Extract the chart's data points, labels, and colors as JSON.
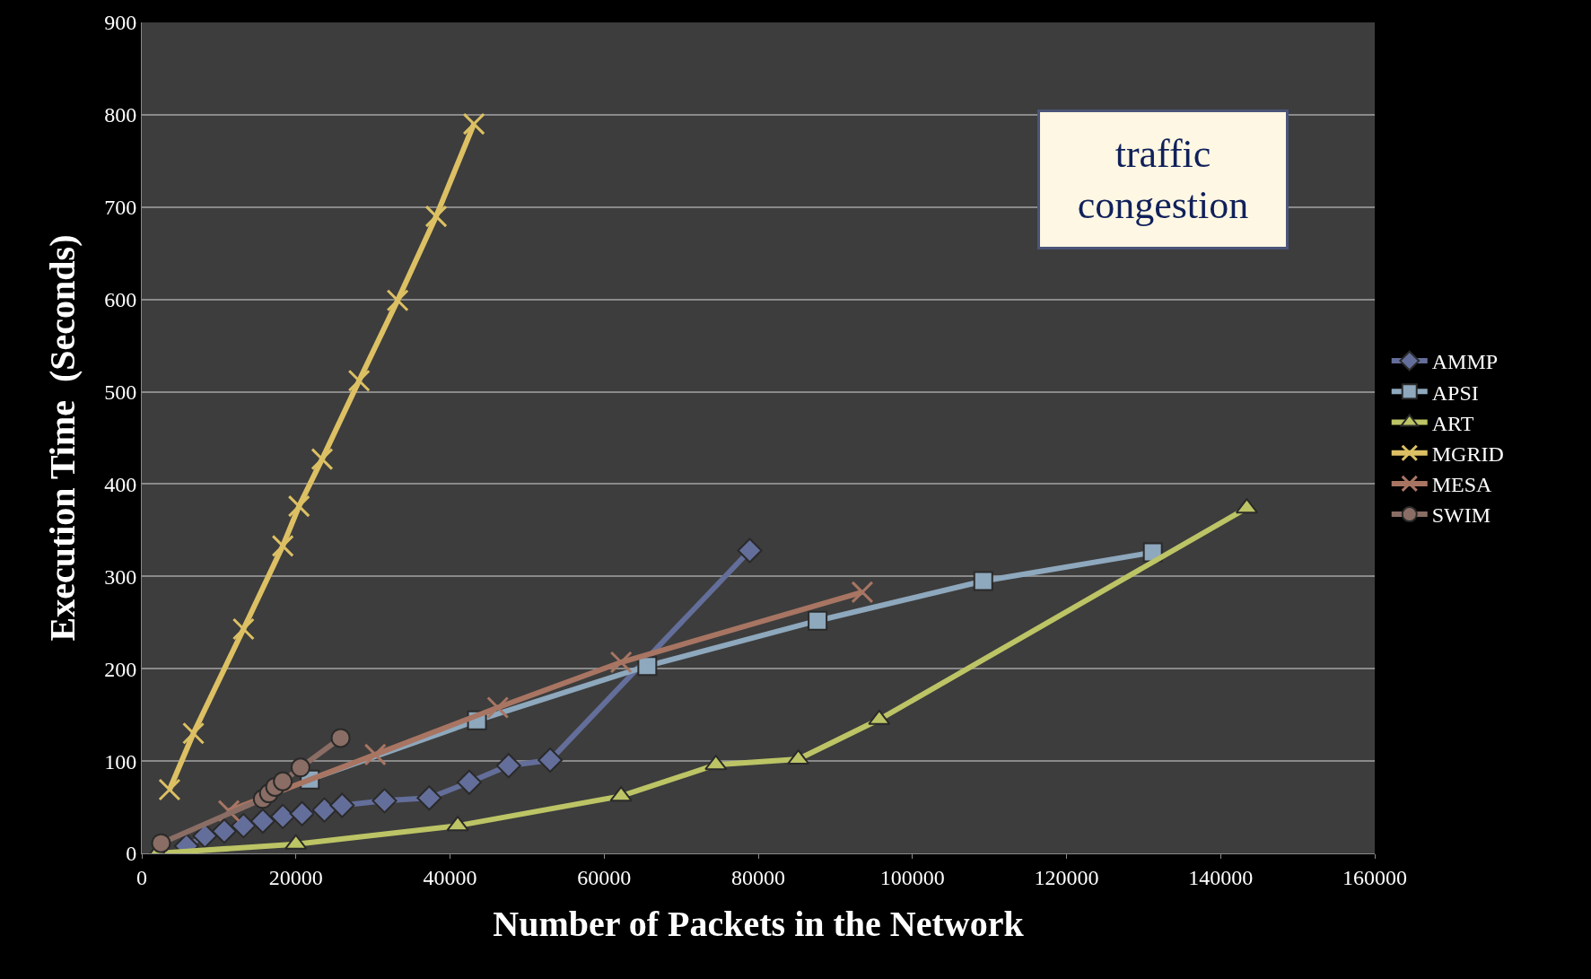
{
  "chart_data": {
    "type": "line",
    "xlabel": "Number of Packets in the Network",
    "ylabel": "Execution Time  (Seconds)",
    "xlim": [
      0,
      160000
    ],
    "xticks": [
      0,
      20000,
      40000,
      60000,
      80000,
      100000,
      120000,
      140000,
      160000
    ],
    "ylim": [
      0,
      900
    ],
    "yticks": [
      0,
      100,
      200,
      300,
      400,
      500,
      600,
      700,
      800,
      900
    ],
    "grid": "y",
    "legend": "right",
    "annotations": [
      "traffic congestion"
    ],
    "series": [
      {
        "name": "AMMP",
        "color": "#646e9a",
        "marker": "diamond",
        "x": [
          5800,
          8200,
          10700,
          13200,
          15700,
          18300,
          20800,
          23700,
          26000,
          31500,
          37300,
          42500,
          47600,
          53000,
          78900
        ],
        "values": [
          8,
          19,
          24,
          30,
          35,
          40,
          43,
          47,
          52,
          57,
          60,
          77,
          95,
          101,
          328
        ]
      },
      {
        "name": "APSI",
        "color": "#8ea8bd",
        "marker": "square",
        "x": [
          21800,
          43500,
          65600,
          87700,
          109200,
          131200
        ],
        "values": [
          80,
          144,
          203,
          252,
          295,
          326
        ]
      },
      {
        "name": "ART",
        "color": "#bcc465",
        "marker": "triangle",
        "x": [
          2000,
          20000,
          41000,
          62200,
          74500,
          85200,
          95700,
          143400
        ],
        "values": [
          0,
          10,
          30,
          62,
          96,
          102,
          145,
          374
        ]
      },
      {
        "name": "MGRID",
        "color": "#dcc063",
        "marker": "cross",
        "x": [
          3600,
          6700,
          13200,
          18300,
          20400,
          23400,
          28200,
          33200,
          38200,
          43100
        ],
        "values": [
          69,
          130,
          243,
          333,
          376,
          427,
          512,
          599,
          690,
          790
        ]
      },
      {
        "name": "MESA",
        "color": "#a87563",
        "marker": "cross",
        "x": [
          11300,
          30300,
          46200,
          62200,
          93500
        ],
        "values": [
          46,
          107,
          158,
          207,
          283
        ]
      },
      {
        "name": "SWIM",
        "color": "#8a6d64",
        "marker": "circle",
        "x": [
          2500,
          15700,
          16500,
          17300,
          18300,
          20600,
          25800
        ],
        "values": [
          11,
          59,
          65,
          72,
          78,
          93,
          125
        ]
      }
    ]
  }
}
